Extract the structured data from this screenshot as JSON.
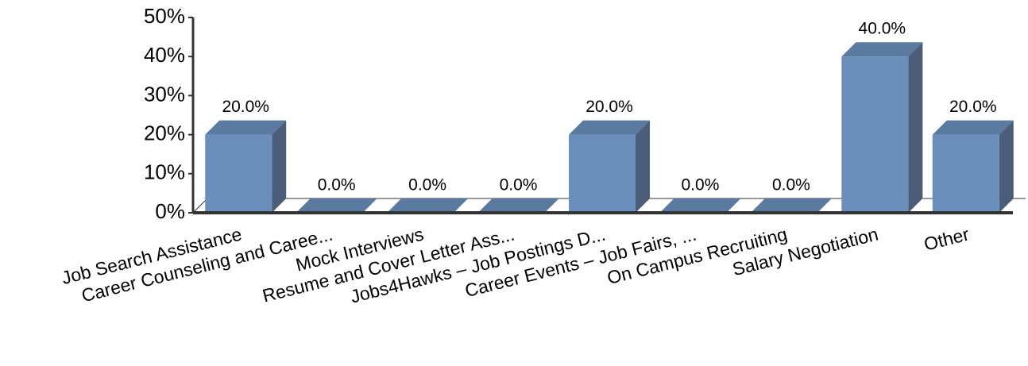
{
  "chart_data": {
    "type": "bar3d",
    "categories": [
      "Job Search Assistance",
      "Career Counseling and Caree...",
      "Mock Interviews",
      "Resume and Cover Letter Ass...",
      "Jobs4Hawks – Job Postings D...",
      "Career Events – Job Fairs, ...",
      "On Campus Recruiting",
      "Salary Negotiation",
      "Other"
    ],
    "values": [
      20,
      0,
      0,
      0,
      20,
      0,
      0,
      40,
      20
    ],
    "value_labels": [
      "20.0%",
      "0.0%",
      "0.0%",
      "0.0%",
      "20.0%",
      "0.0%",
      "0.0%",
      "40.0%",
      "20.0%"
    ],
    "color": "#6a8fba",
    "ylim": [
      0,
      50
    ],
    "yticks": [
      {
        "value": 0,
        "label": "0%"
      },
      {
        "value": 10,
        "label": "10%"
      },
      {
        "value": 20,
        "label": "20%"
      },
      {
        "value": 30,
        "label": "30%"
      },
      {
        "value": 40,
        "label": "40%"
      },
      {
        "value": 50,
        "label": "50%"
      }
    ]
  }
}
